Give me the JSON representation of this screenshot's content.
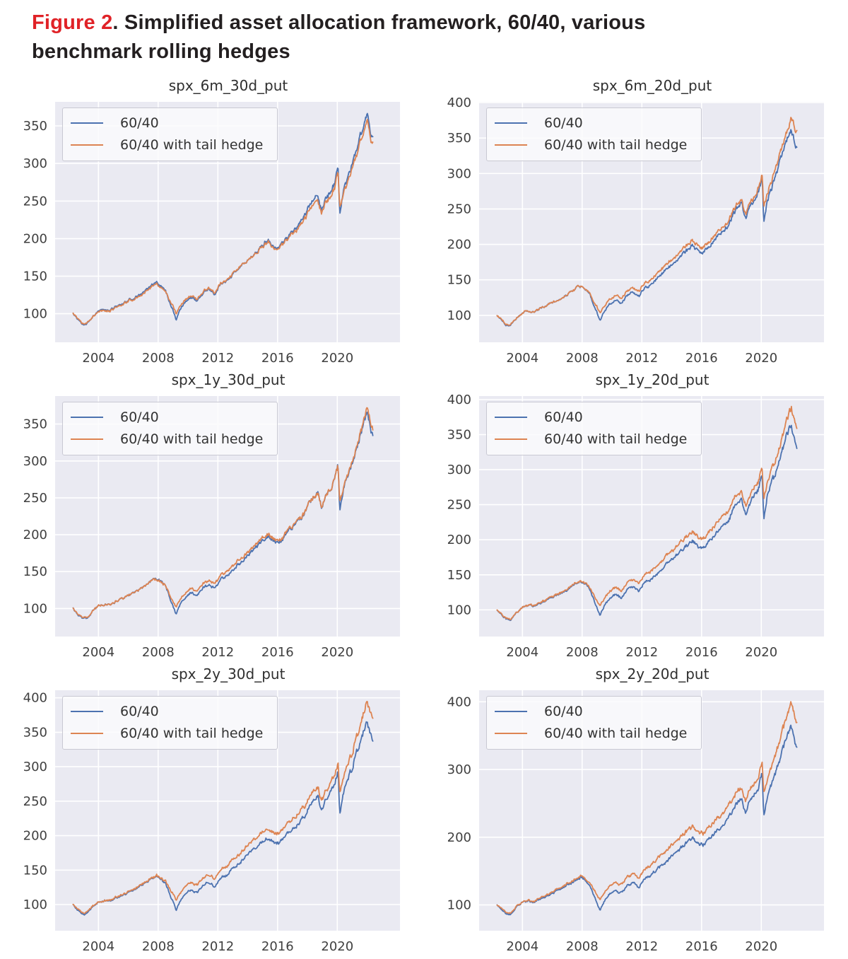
{
  "figure": {
    "label": "Figure 2",
    "title_line1": ". Simplified asset allocation framework, 60/40, various",
    "title_line2": "benchmark rolling hedges"
  },
  "colors": {
    "figure_label": "#e02227",
    "caption_text": "#231f20",
    "axis_text": "#404040",
    "plot_background": "#eaeaf2",
    "gridline": "#ffffff",
    "series_60_40": "#4c72b0",
    "series_tail_hedge": "#dd8452"
  },
  "chart_data": {
    "type": "line",
    "grid": true,
    "legend_position": "upper left",
    "xlim": [
      2001.1,
      2024.2
    ],
    "xticks": [
      2004,
      2008,
      2012,
      2016,
      2020
    ],
    "x_years": [
      2002.3,
      2002.6,
      2002.9,
      2003.2,
      2003.6,
      2004.0,
      2004.4,
      2004.8,
      2005.2,
      2005.6,
      2006.0,
      2006.4,
      2006.8,
      2007.2,
      2007.6,
      2007.9,
      2008.2,
      2008.5,
      2008.8,
      2009.0,
      2009.2,
      2009.5,
      2009.8,
      2010.2,
      2010.6,
      2011.0,
      2011.4,
      2011.8,
      2012.2,
      2012.6,
      2013.0,
      2013.4,
      2013.8,
      2014.2,
      2014.6,
      2015.0,
      2015.4,
      2015.8,
      2016.1,
      2016.5,
      2017.0,
      2017.4,
      2017.8,
      2018.1,
      2018.4,
      2018.7,
      2018.95,
      2019.2,
      2019.5,
      2019.8,
      2020.05,
      2020.17,
      2020.4,
      2020.7,
      2021.0,
      2021.3,
      2021.6,
      2021.85,
      2022.0,
      2022.2,
      2022.4
    ],
    "panels": [
      {
        "title": "spx_6m_30d_put",
        "ylim": [
          62,
          382
        ],
        "yticks": [
          100,
          150,
          200,
          250,
          300,
          350
        ],
        "series": [
          {
            "name": "60/40",
            "color": "#4c72b0",
            "values": [
              100,
              93,
              87,
              86,
              96,
              104,
              106,
              105,
              110,
              113,
              118,
              121,
              126,
              132,
              138,
              141,
              136,
              131,
              113,
              104,
              92,
              106,
              115,
              122,
              117,
              128,
              133,
              126,
              140,
              143,
              152,
              160,
              168,
              176,
              183,
              192,
              198,
              190,
              188,
              198,
              210,
              218,
              228,
              242,
              252,
              258,
              235,
              252,
              262,
              272,
              295,
              230,
              262,
              280,
              298,
              320,
              340,
              358,
              365,
              345,
              335
            ]
          },
          {
            "name": "60/40 with tail hedge",
            "color": "#dd8452",
            "values": [
              100,
              94,
              88,
              87,
              96,
              103,
              105,
              104,
              109,
              112,
              117,
              120,
              124,
              130,
              136,
              139,
              134,
              130,
              116,
              110,
              100,
              110,
              118,
              124,
              119,
              130,
              134,
              128,
              141,
              144,
              153,
              161,
              168,
              176,
              182,
              190,
              196,
              188,
              186,
              196,
              207,
              214,
              224,
              236,
              246,
              252,
              232,
              247,
              256,
              266,
              288,
              240,
              258,
              274,
              292,
              313,
              332,
              349,
              356,
              338,
              326
            ]
          }
        ]
      },
      {
        "title": "spx_6m_20d_put",
        "ylim": [
          62,
          401
        ],
        "yticks": [
          100,
          150,
          200,
          250,
          300,
          350,
          400
        ],
        "series": [
          {
            "name": "60/40",
            "color": "#4c72b0",
            "values": [
              100,
              93,
              87,
              86,
              96,
              104,
              106,
              105,
              110,
              113,
              118,
              121,
              126,
              132,
              138,
              141,
              136,
              131,
              113,
              104,
              92,
              106,
              115,
              122,
              117,
              128,
              133,
              126,
              140,
              143,
              152,
              160,
              168,
              176,
              183,
              192,
              198,
              190,
              188,
              198,
              210,
              218,
              228,
              242,
              252,
              258,
              235,
              252,
              262,
              272,
              295,
              230,
              262,
              280,
              298,
              320,
              340,
              358,
              365,
              345,
              335
            ]
          },
          {
            "name": "60/40 with tail hedge",
            "color": "#dd8452",
            "values": [
              100,
              94,
              88,
              87,
              96,
              104,
              106,
              105,
              110,
              113,
              118,
              121,
              126,
              132,
              138,
              141,
              136,
              132,
              118,
              112,
              103,
              113,
              122,
              129,
              124,
              134,
              139,
              133,
              147,
              150,
              159,
              167,
              175,
              183,
              190,
              199,
              205,
              197,
              195,
              205,
              216,
              224,
              234,
              247,
              257,
              262,
              241,
              257,
              267,
              277,
              298,
              252,
              272,
              290,
              308,
              330,
              350,
              370,
              383,
              365,
              358
            ]
          }
        ]
      },
      {
        "title": "spx_1y_30d_put",
        "ylim": [
          62,
          388
        ],
        "yticks": [
          100,
          150,
          200,
          250,
          300,
          350
        ],
        "series": [
          {
            "name": "60/40",
            "color": "#4c72b0",
            "values": [
              100,
              93,
              87,
              86,
              96,
              104,
              106,
              105,
              110,
              113,
              118,
              121,
              126,
              132,
              138,
              141,
              136,
              131,
              113,
              104,
              92,
              106,
              115,
              122,
              117,
              128,
              133,
              126,
              140,
              143,
              152,
              160,
              168,
              176,
              183,
              192,
              198,
              190,
              188,
              198,
              210,
              218,
              228,
              242,
              252,
              258,
              235,
              252,
              262,
              272,
              295,
              230,
              262,
              280,
              298,
              320,
              340,
              358,
              365,
              345,
              335
            ]
          },
          {
            "name": "60/40 with tail hedge",
            "color": "#dd8452",
            "values": [
              100,
              94,
              88,
              87,
              96,
              104,
              106,
              105,
              110,
              113,
              118,
              121,
              126,
              132,
              138,
              140,
              135,
              131,
              117,
              110,
              102,
              112,
              121,
              128,
              123,
              134,
              139,
              132,
              146,
              149,
              158,
              166,
              173,
              180,
              187,
              196,
              201,
              193,
              191,
              200,
              212,
              219,
              229,
              242,
              252,
              257,
              236,
              252,
              262,
              272,
              293,
              242,
              264,
              282,
              300,
              322,
              343,
              362,
              372,
              352,
              343
            ]
          }
        ]
      },
      {
        "title": "spx_1y_20d_put",
        "ylim": [
          62,
          405
        ],
        "yticks": [
          100,
          150,
          200,
          250,
          300,
          350,
          400
        ],
        "series": [
          {
            "name": "60/40",
            "color": "#4c72b0",
            "values": [
              100,
              93,
              87,
              86,
              96,
              104,
              106,
              105,
              110,
              113,
              118,
              121,
              126,
              132,
              138,
              141,
              136,
              131,
              113,
              104,
              92,
              106,
              115,
              122,
              117,
              128,
              133,
              126,
              140,
              143,
              152,
              160,
              168,
              176,
              183,
              192,
              198,
              190,
              188,
              198,
              210,
              218,
              228,
              242,
              252,
              258,
              235,
              252,
              262,
              272,
              295,
              230,
              262,
              280,
              298,
              320,
              340,
              358,
              365,
              345,
              335
            ]
          },
          {
            "name": "60/40 with tail hedge",
            "color": "#dd8452",
            "values": [
              100,
              94,
              88,
              87,
              96,
              104,
              106,
              106,
              111,
              114,
              119,
              122,
              127,
              133,
              139,
              142,
              137,
              133,
              120,
              114,
              106,
              116,
              125,
              132,
              127,
              138,
              143,
              137,
              151,
              155,
              164,
              172,
              180,
              188,
              196,
              205,
              211,
              203,
              201,
              211,
              224,
              232,
              242,
              255,
              264,
              268,
              248,
              263,
              273,
              283,
              305,
              260,
              280,
              298,
              316,
              338,
              360,
              380,
              390,
              372,
              365
            ]
          }
        ]
      },
      {
        "title": "spx_2y_30d_put",
        "ylim": [
          62,
          411
        ],
        "yticks": [
          100,
          150,
          200,
          250,
          300,
          350,
          400
        ],
        "series": [
          {
            "name": "60/40",
            "color": "#4c72b0",
            "values": [
              100,
              93,
              87,
              86,
              96,
              104,
              106,
              105,
              110,
              113,
              118,
              121,
              126,
              132,
              138,
              141,
              136,
              131,
              113,
              104,
              92,
              106,
              115,
              122,
              117,
              128,
              133,
              126,
              140,
              143,
              152,
              160,
              168,
              176,
              183,
              192,
              198,
              190,
              188,
              198,
              210,
              218,
              228,
              242,
              252,
              258,
              235,
              252,
              262,
              272,
              295,
              230,
              262,
              280,
              298,
              320,
              340,
              358,
              365,
              345,
              335
            ]
          },
          {
            "name": "60/40 with tail hedge",
            "color": "#dd8452",
            "values": [
              100,
              95,
              89,
              88,
              97,
              104,
              106,
              106,
              111,
              114,
              119,
              122,
              127,
              133,
              139,
              142,
              137,
              134,
              121,
              115,
              107,
              117,
              126,
              133,
              128,
              139,
              144,
              138,
              152,
              156,
              165,
              173,
              181,
              189,
              197,
              206,
              212,
              204,
              202,
              212,
              225,
              233,
              243,
              256,
              266,
              270,
              250,
              265,
              275,
              285,
              307,
              262,
              284,
              302,
              320,
              342,
              365,
              385,
              395,
              375,
              368
            ]
          }
        ]
      },
      {
        "title": "spx_2y_20d_put",
        "ylim": [
          62,
          417
        ],
        "yticks": [
          100,
          200,
          300,
          400
        ],
        "series": [
          {
            "name": "60/40",
            "color": "#4c72b0",
            "values": [
              100,
              93,
              87,
              86,
              96,
              104,
              106,
              105,
              110,
              113,
              118,
              121,
              126,
              132,
              138,
              141,
              136,
              131,
              113,
              104,
              92,
              106,
              115,
              122,
              117,
              128,
              133,
              126,
              140,
              143,
              152,
              160,
              168,
              176,
              183,
              192,
              198,
              190,
              188,
              198,
              210,
              218,
              228,
              242,
              252,
              258,
              235,
              252,
              262,
              272,
              295,
              230,
              262,
              280,
              298,
              320,
              340,
              358,
              365,
              345,
              335
            ]
          },
          {
            "name": "60/40 with tail hedge",
            "color": "#dd8452",
            "values": [
              100,
              95,
              89,
              88,
              97,
              104,
              107,
              106,
              112,
              115,
              120,
              123,
              128,
              134,
              140,
              143,
              138,
              135,
              122,
              116,
              108,
              118,
              127,
              134,
              129,
              141,
              146,
              140,
              154,
              158,
              167,
              176,
              184,
              192,
              200,
              209,
              215,
              207,
              205,
              215,
              228,
              236,
              246,
              259,
              269,
              273,
              253,
              268,
              278,
              288,
              310,
              265,
              288,
              306,
              325,
              348,
              370,
              390,
              400,
              380,
              372
            ]
          }
        ]
      }
    ]
  }
}
